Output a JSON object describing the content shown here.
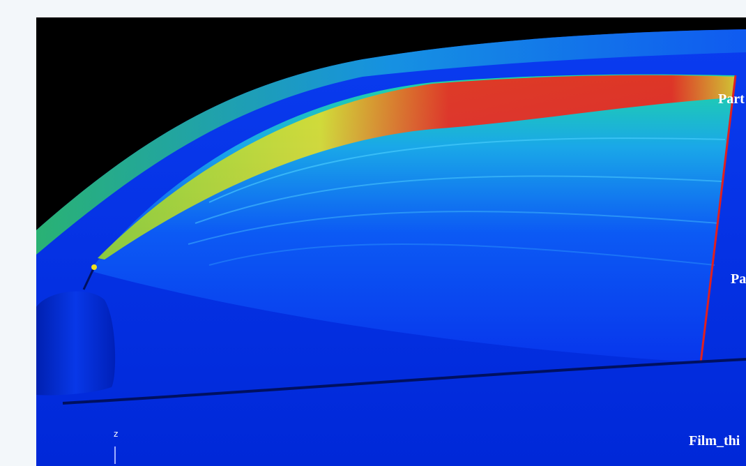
{
  "labels": {
    "top": "Part",
    "middle": "Pa",
    "bottom": "Film_thi",
    "axis": "z"
  }
}
